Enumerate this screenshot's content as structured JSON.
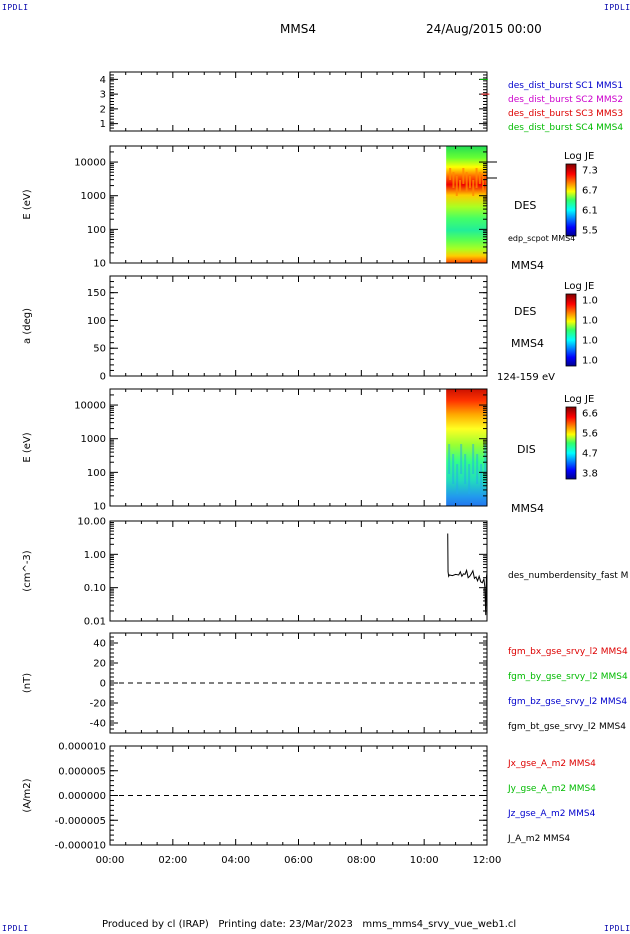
{
  "header": {
    "corner_tl": "IPDLI",
    "corner_tr": "IPDLI",
    "corner_bl": "IPDLI",
    "corner_br": "IPDLI",
    "mission": "MMS4",
    "datetime": "24/Aug/2015 00:00"
  },
  "footer": {
    "text": "Produced by cl (IRAP)   Printing date: 23/Mar/2023   mms_mms4_srvy_vue_web1.cl"
  },
  "colors": {
    "red": "#dd0000",
    "green": "#00bb00",
    "blue": "#0000cc",
    "magenta": "#cc00cc",
    "black": "#000000"
  },
  "chart_data": [
    {
      "id": "burst",
      "type": "line",
      "ylim": [
        0.5,
        4.5
      ],
      "yticks": [
        "1",
        "2",
        "3",
        "4"
      ],
      "yticks_val": [
        1,
        2,
        3,
        4
      ],
      "legend": [
        {
          "text": "des_dist_burst SC1 MMS1",
          "color": "#0000cc"
        },
        {
          "text": "des_dist_burst SC2 MMS2",
          "color": "#cc00cc"
        },
        {
          "text": "des_dist_burst SC3 MMS3",
          "color": "#dd0000"
        },
        {
          "text": "des_dist_burst SC4 MMS4",
          "color": "#00bb00"
        }
      ],
      "marks": [
        {
          "sc": 4,
          "t": 11.9,
          "color": "#00bb00"
        },
        {
          "sc": 3,
          "t": 11.95,
          "color": "#dd0000"
        }
      ]
    },
    {
      "id": "des_energy",
      "type": "heatmap",
      "ylabel": "E (eV)",
      "yscale": "log",
      "ylim": [
        10,
        30000
      ],
      "yticks": [
        "10",
        "100",
        "1000",
        "10000"
      ],
      "yticks_val": [
        10,
        100,
        1000,
        10000
      ],
      "colorbar_title": "Log JE",
      "colorbar_ticks": [
        "7.3",
        "6.7",
        "6.1",
        "5.5"
      ],
      "right_label": "DES",
      "right_label2": "edp_scpot MMS4",
      "bottom_right_label": "MMS4",
      "data_start": 10.7,
      "data_end": 12.0
    },
    {
      "id": "des_pitch",
      "type": "heatmap",
      "ylabel": "a (deg)",
      "ylim": [
        0,
        180
      ],
      "yticks": [
        "0",
        "50",
        "100",
        "150"
      ],
      "yticks_val": [
        0,
        50,
        100,
        150
      ],
      "colorbar_title": "Log JE",
      "colorbar_ticks": [
        "1.0",
        "1.0",
        "1.0",
        "1.0"
      ],
      "right_label": "DES",
      "right_label2": "MMS4",
      "bottom_right_label": "124-159 eV"
    },
    {
      "id": "dis_energy",
      "type": "heatmap",
      "ylabel": "E (eV)",
      "yscale": "log",
      "ylim": [
        10,
        30000
      ],
      "yticks": [
        "10",
        "100",
        "1000",
        "10000"
      ],
      "yticks_val": [
        10,
        100,
        1000,
        10000
      ],
      "colorbar_title": "Log JE",
      "colorbar_ticks": [
        "6.6",
        "5.6",
        "4.7",
        "3.8"
      ],
      "right_label": "DIS",
      "bottom_right_label": "MMS4",
      "data_start": 10.7,
      "data_end": 12.0
    },
    {
      "id": "density",
      "type": "line",
      "ylabel": "(cm^-3)",
      "yscale": "log",
      "ylim": [
        0.01,
        10
      ],
      "yticks": [
        "0.01",
        "0.10",
        "1.00",
        "10.00"
      ],
      "yticks_val": [
        0.01,
        0.1,
        1,
        10
      ],
      "legend": [
        {
          "text": "des_numberdensity_fast M",
          "color": "#000000"
        }
      ],
      "x": [
        10.75,
        10.76,
        10.78,
        10.8,
        10.9,
        11.0,
        11.1,
        11.15,
        11.2,
        11.25,
        11.3,
        11.35,
        11.4,
        11.45,
        11.5,
        11.55,
        11.6,
        11.65,
        11.7,
        11.75,
        11.8,
        11.85,
        11.9,
        11.93,
        11.96,
        11.98,
        12.0
      ],
      "y": [
        4.2,
        0.3,
        0.22,
        0.24,
        0.23,
        0.25,
        0.24,
        0.3,
        0.22,
        0.26,
        0.25,
        0.33,
        0.2,
        0.22,
        0.26,
        0.32,
        0.19,
        0.21,
        0.16,
        0.22,
        0.15,
        0.14,
        0.18,
        0.11,
        0.015,
        0.2,
        0.3
      ]
    },
    {
      "id": "mag",
      "type": "line",
      "ylabel": "(nT)",
      "ylim": [
        -50,
        50
      ],
      "yticks": [
        "-40",
        "-20",
        "0",
        "20",
        "40"
      ],
      "yticks_val": [
        -40,
        -20,
        0,
        20,
        40
      ],
      "legend": [
        {
          "text": "fgm_bx_gse_srvy_l2 MMS4",
          "color": "#dd0000"
        },
        {
          "text": "fgm_by_gse_srvy_l2 MMS4",
          "color": "#00bb00"
        },
        {
          "text": "fgm_bz_gse_srvy_l2 MMS4",
          "color": "#0000cc"
        },
        {
          "text": "fgm_bt_gse_srvy_l2 MMS4",
          "color": "#000000"
        }
      ]
    },
    {
      "id": "current",
      "type": "line",
      "ylabel": "(A/m2)",
      "ylim": [
        -1e-05,
        1e-05
      ],
      "yticks": [
        "-0.000010",
        "-0.000005",
        "0.000000",
        "0.000005",
        "0.000010"
      ],
      "yticks_val": [
        -1e-05,
        -5e-06,
        0,
        5e-06,
        1e-05
      ],
      "legend": [
        {
          "text": "Jx_gse_A_m2 MMS4",
          "color": "#dd0000"
        },
        {
          "text": "Jy_gse_A_m2 MMS4",
          "color": "#00bb00"
        },
        {
          "text": "Jz_gse_A_m2 MMS4",
          "color": "#0000cc"
        },
        {
          "text": "J_A_m2 MMS4",
          "color": "#000000"
        }
      ]
    }
  ],
  "xaxis": {
    "xlim": [
      0,
      12
    ],
    "ticks": [
      "00:00",
      "02:00",
      "04:00",
      "06:00",
      "08:00",
      "10:00",
      "12:00"
    ],
    "ticks_val": [
      0,
      2,
      4,
      6,
      8,
      10,
      12
    ]
  }
}
